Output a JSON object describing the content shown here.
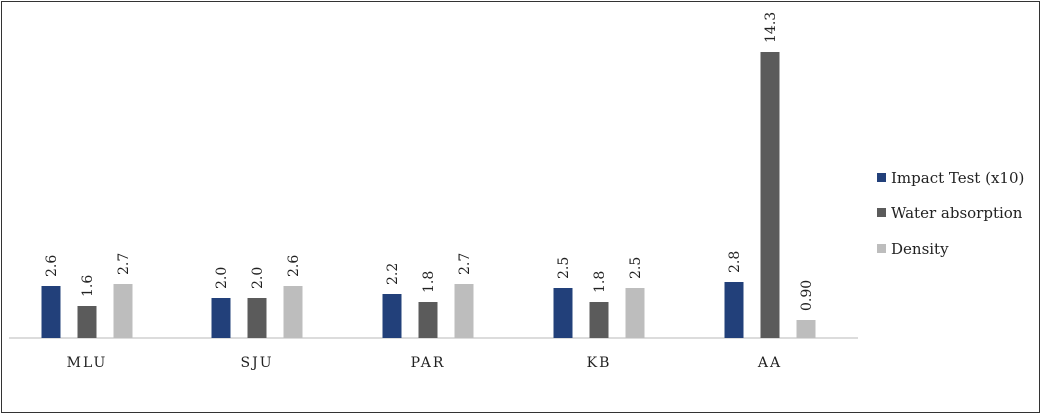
{
  "chart_data": {
    "type": "bar",
    "title": "",
    "xlabel": "",
    "ylabel": "",
    "categories": [
      "MLU",
      "SJU",
      "PAR",
      "KB",
      "AA"
    ],
    "series": [
      {
        "name": "Impact Test (x10)",
        "color": "#22407a",
        "values": [
          2.6,
          2.0,
          2.2,
          2.5,
          2.8
        ],
        "labels": [
          "2.6",
          "2.0",
          "2.2",
          "2.5",
          "2.8"
        ]
      },
      {
        "name": "Water absorption",
        "color": "#5b5b5b",
        "values": [
          1.6,
          2.0,
          1.8,
          1.8,
          14.3
        ],
        "labels": [
          "1.6",
          "2.0",
          "1.8",
          "1.8",
          "14.3"
        ]
      },
      {
        "name": "Density",
        "color": "#bdbdbd",
        "values": [
          2.7,
          2.6,
          2.7,
          2.5,
          0.9
        ],
        "labels": [
          "2.7",
          "2.6",
          "2.7",
          "2.5",
          "0.90"
        ]
      }
    ],
    "ylim": [
      0,
      14.3
    ],
    "grid": false,
    "legend_position": "right",
    "data_labels": true,
    "data_label_rotation": "vertical"
  }
}
